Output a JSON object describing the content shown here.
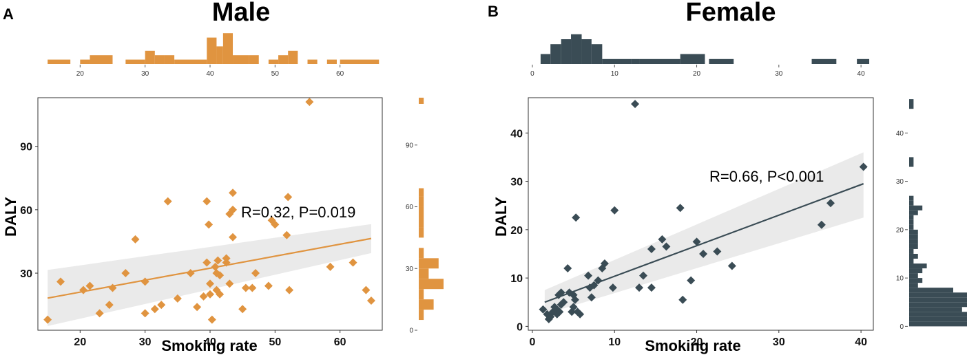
{
  "chart_data": [
    {
      "type": "scatter",
      "panel": "A",
      "title": "Male",
      "xlabel": "Smoking rate",
      "ylabel": "DALY",
      "xlim": [
        13.5,
        66.5
      ],
      "ylim": [
        3,
        113
      ],
      "xticks": [
        20,
        30,
        40,
        50,
        60
      ],
      "yticks": [
        30,
        60,
        90
      ],
      "color": "#e09440",
      "band_color": "#e6e6e6",
      "annotation": "R=0.32, P=0.019",
      "fit": {
        "x": [
          15,
          64.8
        ],
        "y": [
          18.2,
          46.4
        ],
        "band_upper": [
          31.5,
          53.2
        ],
        "band_lower": [
          5.0,
          39.5
        ]
      },
      "points": [
        [
          15,
          8
        ],
        [
          17,
          26
        ],
        [
          20.5,
          22
        ],
        [
          21.5,
          24
        ],
        [
          23,
          11
        ],
        [
          24.5,
          15
        ],
        [
          25,
          23
        ],
        [
          27,
          30
        ],
        [
          28.5,
          46
        ],
        [
          30,
          26
        ],
        [
          30,
          11
        ],
        [
          31.5,
          13
        ],
        [
          32.5,
          15
        ],
        [
          33.5,
          64
        ],
        [
          35,
          18
        ],
        [
          37,
          30
        ],
        [
          38,
          14
        ],
        [
          39,
          19
        ],
        [
          39.5,
          35
        ],
        [
          39.5,
          64
        ],
        [
          39.8,
          53
        ],
        [
          40,
          25
        ],
        [
          40,
          20
        ],
        [
          40.3,
          8
        ],
        [
          40.8,
          33
        ],
        [
          41,
          30
        ],
        [
          41,
          22
        ],
        [
          41.2,
          36
        ],
        [
          41.5,
          29
        ],
        [
          41.5,
          20
        ],
        [
          42.5,
          35
        ],
        [
          42.5,
          37
        ],
        [
          43,
          25
        ],
        [
          43,
          58
        ],
        [
          43.5,
          60
        ],
        [
          43.5,
          68
        ],
        [
          43.5,
          47
        ],
        [
          45,
          13
        ],
        [
          45.5,
          23
        ],
        [
          46.5,
          23
        ],
        [
          47,
          30
        ],
        [
          49,
          24
        ],
        [
          49.5,
          55
        ],
        [
          50,
          53
        ],
        [
          51.8,
          48
        ],
        [
          52,
          66
        ],
        [
          52.2,
          22
        ],
        [
          55.3,
          111
        ],
        [
          58.5,
          33
        ],
        [
          62,
          35
        ],
        [
          64,
          22
        ],
        [
          64.8,
          17
        ]
      ],
      "top_hist": {
        "ticks": [
          20,
          30,
          40,
          50,
          60
        ],
        "range": [
          13.5,
          66.5
        ],
        "bins": [
          [
            15,
            18.5,
            1
          ],
          [
            20,
            21.5,
            1
          ],
          [
            21.5,
            25,
            2
          ],
          [
            27,
            30,
            1
          ],
          [
            30,
            31.5,
            3
          ],
          [
            31.5,
            33,
            2
          ],
          [
            33,
            34.5,
            2
          ],
          [
            34.5,
            39.5,
            1
          ],
          [
            39.5,
            41,
            6
          ],
          [
            41,
            42,
            4
          ],
          [
            42,
            43.5,
            7
          ],
          [
            43.5,
            46,
            2
          ],
          [
            46,
            47.5,
            2
          ],
          [
            49,
            50.5,
            1
          ],
          [
            50.5,
            52,
            2
          ],
          [
            52,
            53.5,
            3
          ],
          [
            55,
            56.5,
            1
          ],
          [
            58,
            59.5,
            1
          ],
          [
            60,
            66,
            1
          ]
        ]
      },
      "side_hist": {
        "ticks": [
          0,
          30,
          60,
          90
        ],
        "range": [
          0,
          113
        ],
        "bins": [
          [
            5,
            10,
            1
          ],
          [
            10,
            15,
            3
          ],
          [
            15,
            20,
            1
          ],
          [
            20,
            25,
            5
          ],
          [
            25,
            30,
            2
          ],
          [
            30,
            35,
            4
          ],
          [
            35,
            40,
            1
          ],
          [
            45,
            50,
            1
          ],
          [
            50,
            55,
            1
          ],
          [
            55,
            60,
            1
          ],
          [
            60,
            65,
            1
          ],
          [
            65,
            69,
            1
          ],
          [
            110,
            113,
            1
          ]
        ]
      }
    },
    {
      "type": "scatter",
      "panel": "B",
      "title": "Female",
      "xlabel": "Smoking rate",
      "ylabel": "DALY",
      "xlim": [
        -0.5,
        41.5
      ],
      "ylim": [
        -0.8,
        47.3
      ],
      "xticks": [
        0,
        10,
        20,
        30,
        40
      ],
      "yticks": [
        0,
        10,
        20,
        30,
        40
      ],
      "color": "#3a4c55",
      "band_color": "#e6e6e6",
      "annotation": "R=0.66, P<0.001",
      "fit": {
        "x": [
          1.5,
          40.3
        ],
        "y": [
          5.0,
          29.5
        ],
        "band_upper": [
          7.5,
          36.0
        ],
        "band_lower": [
          2.5,
          22.5
        ]
      },
      "points": [
        [
          1.3,
          3.5
        ],
        [
          1.8,
          2.5
        ],
        [
          2,
          1.5
        ],
        [
          2.2,
          2
        ],
        [
          2.5,
          3
        ],
        [
          2.7,
          4
        ],
        [
          3,
          2.5
        ],
        [
          3,
          3.5
        ],
        [
          3.2,
          6.5
        ],
        [
          3.3,
          3
        ],
        [
          3.5,
          4.5
        ],
        [
          3.5,
          7
        ],
        [
          3.8,
          5
        ],
        [
          4.3,
          12
        ],
        [
          4.5,
          7
        ],
        [
          4.8,
          3
        ],
        [
          5,
          4
        ],
        [
          5,
          6.5
        ],
        [
          5.2,
          5.5
        ],
        [
          5.3,
          22.5
        ],
        [
          5.5,
          3
        ],
        [
          5.8,
          2.5
        ],
        [
          6.8,
          10.5
        ],
        [
          7,
          8
        ],
        [
          7.2,
          6
        ],
        [
          7.5,
          8.5
        ],
        [
          8,
          9.5
        ],
        [
          8.5,
          12
        ],
        [
          8.8,
          13
        ],
        [
          9.8,
          8
        ],
        [
          10,
          24
        ],
        [
          12.5,
          46
        ],
        [
          13,
          8
        ],
        [
          13.5,
          10.5
        ],
        [
          14.5,
          8
        ],
        [
          14.5,
          16
        ],
        [
          15.8,
          18
        ],
        [
          16.3,
          16.5
        ],
        [
          18,
          24.5
        ],
        [
          18.3,
          5.5
        ],
        [
          19.3,
          9.5
        ],
        [
          20,
          17.5
        ],
        [
          20.8,
          15
        ],
        [
          22.5,
          15.5
        ],
        [
          24.3,
          12.5
        ],
        [
          35.2,
          21
        ],
        [
          36.3,
          25.5
        ],
        [
          40.3,
          33
        ]
      ],
      "top_hist": {
        "ticks": [
          0,
          10,
          20,
          30,
          40
        ],
        "range": [
          -0.5,
          41.5
        ],
        "bins": [
          [
            1,
            2.2,
            2
          ],
          [
            2.2,
            3.5,
            4
          ],
          [
            3.5,
            4.7,
            5
          ],
          [
            4.7,
            6,
            6
          ],
          [
            6,
            7.2,
            5
          ],
          [
            7.2,
            8.5,
            4
          ],
          [
            8.5,
            12,
            1
          ],
          [
            12,
            13,
            1
          ],
          [
            13,
            18,
            1
          ],
          [
            18,
            21,
            2
          ],
          [
            21.5,
            24.5,
            1
          ],
          [
            34,
            37,
            1
          ],
          [
            39.5,
            41,
            1
          ]
        ]
      },
      "side_hist": {
        "ticks": [
          0,
          10,
          20,
          30,
          40
        ],
        "range": [
          -0.8,
          47.3
        ],
        "bins": [
          [
            0,
            1,
            15
          ],
          [
            1,
            2,
            15
          ],
          [
            2,
            3,
            15
          ],
          [
            3,
            4,
            12
          ],
          [
            4,
            5,
            15
          ],
          [
            5,
            6,
            15
          ],
          [
            6,
            7,
            15
          ],
          [
            7,
            8,
            10
          ],
          [
            8,
            9,
            2
          ],
          [
            9,
            10,
            3
          ],
          [
            10,
            11,
            2
          ],
          [
            11,
            12,
            3
          ],
          [
            12,
            13,
            4
          ],
          [
            13,
            14,
            1
          ],
          [
            14,
            15,
            2
          ],
          [
            15,
            16,
            1
          ],
          [
            16,
            17,
            2
          ],
          [
            17,
            18,
            2
          ],
          [
            18,
            19,
            2
          ],
          [
            19,
            20,
            2
          ],
          [
            20,
            21,
            1
          ],
          [
            21,
            22,
            1
          ],
          [
            22,
            23,
            1
          ],
          [
            23,
            24,
            2
          ],
          [
            24,
            25,
            3
          ],
          [
            25,
            26,
            1
          ],
          [
            26,
            27,
            1
          ],
          [
            33,
            35,
            1
          ],
          [
            45,
            47,
            1
          ]
        ]
      }
    }
  ]
}
